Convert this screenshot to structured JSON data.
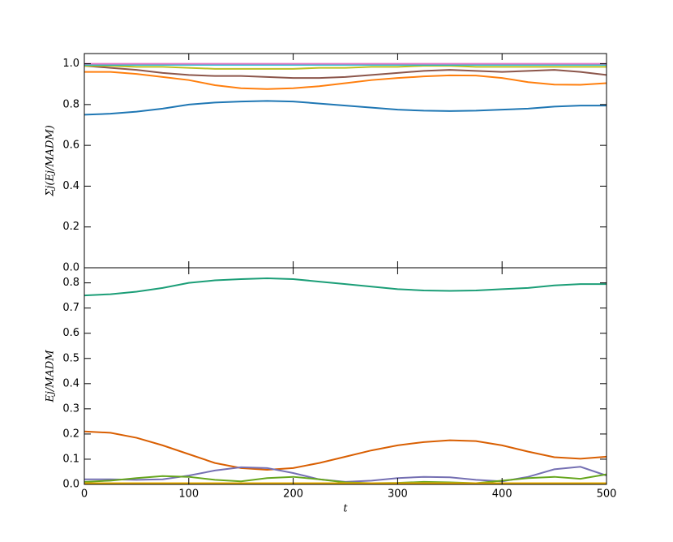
{
  "chart_data": [
    {
      "type": "line",
      "ylabel": "Σj(Ej/MADM)",
      "x": [
        0,
        25,
        50,
        75,
        100,
        125,
        150,
        175,
        200,
        225,
        250,
        275,
        300,
        325,
        350,
        375,
        400,
        425,
        450,
        475,
        500
      ],
      "xlim": [
        0,
        500
      ],
      "xticks": [
        0,
        100,
        200,
        300,
        400,
        500
      ],
      "ylim": [
        0,
        1.05
      ],
      "yticks": [
        {
          "value": 0,
          "label": "0.0"
        },
        {
          "value": 0.2,
          "label": "0.2"
        },
        {
          "value": 0.4,
          "label": "0.4"
        },
        {
          "value": 0.6,
          "label": "0.6"
        },
        {
          "value": 0.8,
          "label": "0.8"
        },
        {
          "value": 1,
          "label": "1.0"
        }
      ],
      "series": [
        {
          "color": "#1f77b4",
          "values": [
            0.75,
            0.755,
            0.765,
            0.78,
            0.8,
            0.81,
            0.815,
            0.818,
            0.815,
            0.805,
            0.795,
            0.785,
            0.775,
            0.77,
            0.768,
            0.77,
            0.775,
            0.78,
            0.79,
            0.795,
            0.795
          ]
        },
        {
          "color": "#ff7f0e",
          "values": [
            0.96,
            0.96,
            0.95,
            0.935,
            0.92,
            0.895,
            0.88,
            0.876,
            0.88,
            0.89,
            0.905,
            0.92,
            0.93,
            0.938,
            0.943,
            0.942,
            0.93,
            0.91,
            0.898,
            0.897,
            0.905
          ]
        },
        {
          "color": "#8c564b",
          "values": [
            0.99,
            0.98,
            0.97,
            0.955,
            0.945,
            0.94,
            0.94,
            0.935,
            0.93,
            0.93,
            0.935,
            0.945,
            0.955,
            0.965,
            0.97,
            0.965,
            0.96,
            0.965,
            0.97,
            0.96,
            0.945
          ]
        },
        {
          "color": "#bcbd22",
          "values": [
            0.99,
            0.99,
            0.985,
            0.985,
            0.98,
            0.975,
            0.975,
            0.975,
            0.975,
            0.98,
            0.98,
            0.985,
            0.985,
            0.99,
            0.99,
            0.985,
            0.985,
            0.985,
            0.985,
            0.985,
            0.985
          ]
        },
        {
          "color": "#17becf",
          "values": [
            0.995,
            0.995,
            0.995,
            0.995,
            0.995,
            0.995,
            0.995,
            0.995,
            0.995,
            0.995,
            0.995,
            0.995,
            0.995,
            0.995,
            0.995,
            0.995,
            0.995,
            0.995,
            0.995,
            0.995,
            0.995
          ]
        },
        {
          "color": "#e377c2",
          "values": [
            1,
            1,
            1,
            1,
            1,
            1,
            1,
            1,
            1,
            1,
            1,
            1,
            1,
            1,
            1,
            1,
            1,
            1,
            1,
            1,
            1
          ]
        }
      ]
    },
    {
      "type": "line",
      "ylabel": "Ej/MADM",
      "xlabel": "t",
      "x": [
        0,
        25,
        50,
        75,
        100,
        125,
        150,
        175,
        200,
        225,
        250,
        275,
        300,
        325,
        350,
        375,
        400,
        425,
        450,
        475,
        500
      ],
      "xlim": [
        0,
        500
      ],
      "xticks": [
        0,
        100,
        200,
        300,
        400,
        500
      ],
      "ylim": [
        0,
        0.86
      ],
      "yticks": [
        {
          "value": 0,
          "label": "0.0"
        },
        0.1,
        0.2,
        0.3,
        0.4,
        0.5,
        0.6,
        0.7,
        0.8
      ],
      "series": [
        {
          "color": "#1b9e77",
          "values": [
            0.75,
            0.755,
            0.765,
            0.78,
            0.8,
            0.81,
            0.815,
            0.818,
            0.815,
            0.805,
            0.795,
            0.785,
            0.775,
            0.77,
            0.768,
            0.77,
            0.775,
            0.78,
            0.79,
            0.795,
            0.795
          ]
        },
        {
          "color": "#d95f02",
          "values": [
            0.21,
            0.205,
            0.185,
            0.155,
            0.12,
            0.085,
            0.065,
            0.058,
            0.065,
            0.085,
            0.11,
            0.135,
            0.155,
            0.168,
            0.175,
            0.172,
            0.155,
            0.13,
            0.108,
            0.102,
            0.11
          ]
        },
        {
          "color": "#7570b3",
          "values": [
            0.02,
            0.02,
            0.018,
            0.02,
            0.035,
            0.055,
            0.068,
            0.065,
            0.045,
            0.02,
            0.01,
            0.015,
            0.025,
            0.03,
            0.028,
            0.018,
            0.012,
            0.03,
            0.06,
            0.07,
            0.035
          ]
        },
        {
          "color": "#66a61e",
          "values": [
            0.01,
            0.015,
            0.025,
            0.033,
            0.03,
            0.018,
            0.012,
            0.025,
            0.03,
            0.02,
            0.008,
            0.005,
            0.006,
            0.01,
            0.008,
            0.005,
            0.015,
            0.025,
            0.03,
            0.022,
            0.04
          ]
        },
        {
          "color": "#e6ab02",
          "values": [
            0.005,
            0.005,
            0.005,
            0.005,
            0.005,
            0.005,
            0.005,
            0.005,
            0.005,
            0.005,
            0.005,
            0.005,
            0.005,
            0.005,
            0.005,
            0.005,
            0.005,
            0.005,
            0.005,
            0.005,
            0.005
          ]
        }
      ]
    }
  ]
}
